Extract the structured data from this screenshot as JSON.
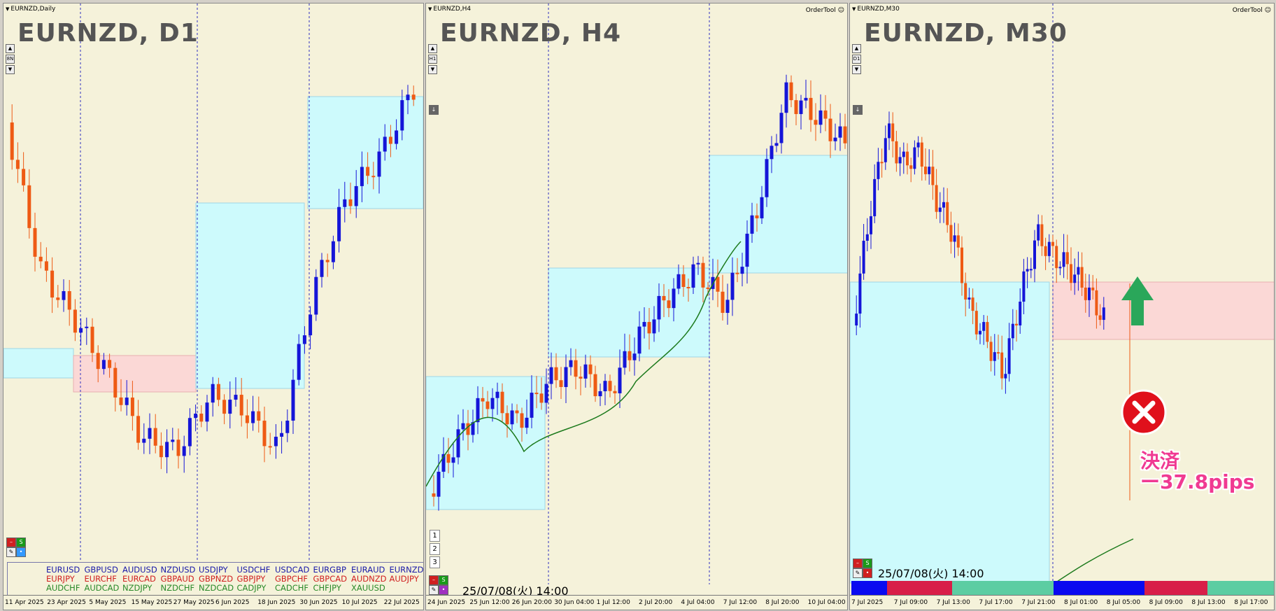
{
  "colors": {
    "bull": "#1515d8",
    "bear": "#ee5a14",
    "zone_blue": "#cdfafc",
    "zone_pink": "#fbd8d6",
    "ma": "#1c7a1c",
    "arrow": "#2aa75a",
    "cross": "#e0101c",
    "result": "#f03a92"
  },
  "panels": [
    {
      "header": "EURNZD,Daily",
      "title": "EURNZD, D1",
      "ordertool": "",
      "ticks": [
        "11 Apr 2025",
        "23 Apr 2025",
        "5 May 2025",
        "15 May 2025",
        "27 May 2025",
        "6 Jun 2025",
        "18 Jun 2025",
        "30 Jun 2025",
        "10 Jul 2025",
        "22 Jul 2025"
      ],
      "side_buttons": [
        "▲",
        "8N",
        "▼"
      ],
      "number_buttons": [],
      "timestamp": ""
    },
    {
      "header": "EURNZD,H4",
      "title": "EURNZD, H4",
      "ordertool": "OrderTool ☺",
      "ticks": [
        "24 Jun 2025",
        "25 Jun 12:00",
        "26 Jun 20:00",
        "30 Jun 04:00",
        "1 Jul 12:00",
        "2 Jul 20:00",
        "4 Jul 04:00",
        "7 Jul 12:00",
        "8 Jul 20:00",
        "10 Jul 04:00"
      ],
      "side_buttons": [
        "▲",
        "H1",
        "▼"
      ],
      "number_buttons": [
        "1",
        "2",
        "3"
      ],
      "timestamp": "25/07/08(火) 14:00"
    },
    {
      "header": "EURNZD,M30",
      "title": "EURNZD, M30",
      "ordertool": "OrderTool ☺",
      "ticks": [
        "7 Jul 2025",
        "7 Jul 09:00",
        "7 Jul 13:00",
        "7 Jul 17:00",
        "7 Jul 21:00",
        "8 Jul 01:00",
        "8 Jul 05:00",
        "8 Jul 09:00",
        "8 Jul 13:00",
        "8 Jul 17:00"
      ],
      "side_buttons": [
        "▲",
        "D1",
        "▼"
      ],
      "number_buttons": [],
      "timestamp": "25/07/08(火) 14:00"
    }
  ],
  "pairs": {
    "rows": [
      [
        "EURUSD",
        "GBPUSD",
        "AUDUSD",
        "NZDUSD",
        "USDJPY",
        "USDCHF",
        "USDCAD",
        "EURGBP",
        "EURAUD",
        "EURNZD"
      ],
      [
        "EURJPY",
        "EURCHF",
        "EURCAD",
        "GBPAUD",
        "GBPNZD",
        "GBPJPY",
        "GBPCHF",
        "GBPCAD",
        "AUDNZD",
        "AUDJPY"
      ],
      [
        "AUDCHF",
        "AUDCAD",
        "NZDJPY",
        "NZDCHF",
        "NZDCAD",
        "CADJPY",
        "CADCHF",
        "CHFJPY",
        "XAUUSD"
      ]
    ],
    "row_colors": [
      "#1a1aa8",
      "#d02020",
      "#2a8a2a"
    ]
  },
  "result": {
    "line1": "決済",
    "line2": "ー37.8pips"
  },
  "colorbar": [
    {
      "color": "#0a0af0",
      "share": 0.084
    },
    {
      "color": "#d81e48",
      "share": 0.155
    },
    {
      "color": "#5ccda2",
      "share": 0.24
    },
    {
      "color": "#0a0af0",
      "share": 0.214
    },
    {
      "color": "#d81e48",
      "share": 0.15
    },
    {
      "color": "#5ccda2",
      "share": 0.157
    }
  ],
  "chart_data": [
    {
      "type": "candlestick",
      "timeframe": "D1",
      "symbol": "EURNZD",
      "x_ticks": [
        "11 Apr 2025",
        "23 Apr 2025",
        "5 May 2025",
        "15 May 2025",
        "27 May 2025",
        "6 Jun 2025",
        "18 Jun 2025",
        "30 Jun 2025",
        "10 Jul 2025",
        "22 Jul 2025"
      ],
      "candle_count": 72,
      "zones": [
        {
          "from": 0,
          "to": 12,
          "kind": "blue"
        },
        {
          "from": 15,
          "to": 36,
          "kind": "pink"
        },
        {
          "from": 36,
          "to": 56,
          "kind": "blue"
        },
        {
          "from": 57,
          "to": 72,
          "kind": "blue"
        }
      ]
    },
    {
      "type": "candlestick",
      "timeframe": "H4",
      "symbol": "EURNZD",
      "x_ticks": [
        "24 Jun 2025",
        "25 Jun 12:00",
        "26 Jun 20:00",
        "30 Jun 04:00",
        "1 Jul 12:00",
        "2 Jul 20:00",
        "4 Jul 04:00",
        "7 Jul 12:00",
        "8 Jul 20:00",
        "10 Jul 04:00"
      ],
      "candle_count": 86,
      "series": [
        {
          "type": "moving-average"
        }
      ],
      "zones": [
        {
          "kind": "blue"
        },
        {
          "kind": "blue"
        },
        {
          "kind": "blue"
        }
      ],
      "annotations": [
        "25/07/08(火) 14:00"
      ]
    },
    {
      "type": "candlestick",
      "timeframe": "M30",
      "symbol": "EURNZD",
      "x_ticks": [
        "7 Jul 2025",
        "7 Jul 09:00",
        "7 Jul 13:00",
        "7 Jul 17:00",
        "7 Jul 21:00",
        "8 Jul 01:00",
        "8 Jul 05:00",
        "8 Jul 09:00",
        "8 Jul 13:00",
        "8 Jul 17:00"
      ],
      "candle_count": 70,
      "series": [
        {
          "type": "moving-average"
        }
      ],
      "zones": [
        {
          "kind": "blue"
        },
        {
          "kind": "pink"
        }
      ],
      "annotations": [
        "決済",
        "ー37.8pips",
        "25/07/08(火) 14:00"
      ]
    }
  ]
}
